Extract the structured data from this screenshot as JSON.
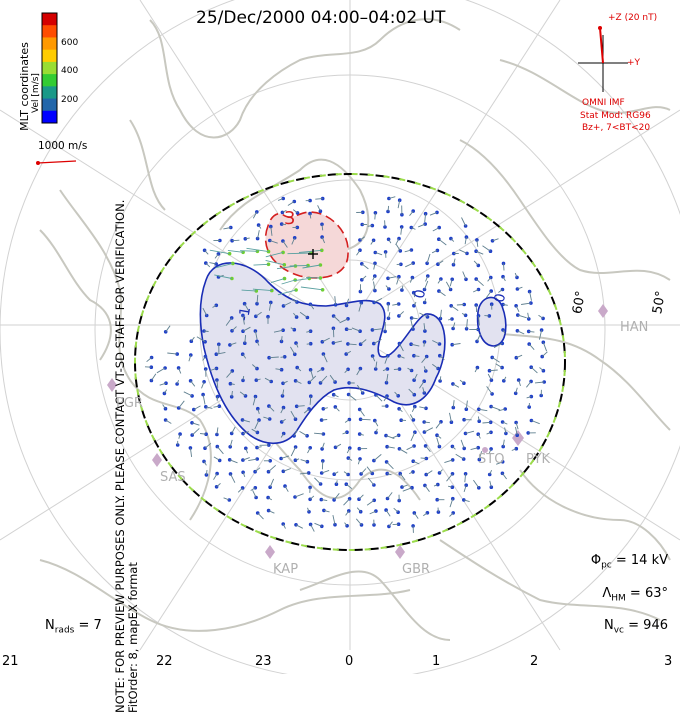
{
  "title": "25/Dec/2000 04:00–04:02 UT",
  "side_note": "NOTE: FOR PREVIEW PURPOSES ONLY. PLEASE CONTACT VT-SD STAFF FOR VERIFICATION.",
  "side_note2": "FitOrder: 8, mapEX format",
  "coords_label": "MLT coordinates",
  "colorbar": {
    "axis_label": "Vel [m/s]",
    "ticks": [
      "600",
      "400",
      "200"
    ],
    "colors": [
      "#d40000",
      "#ff4d00",
      "#ff9900",
      "#ffcc00",
      "#99dd33",
      "#33cc33",
      "#1a9988",
      "#2266aa",
      "#0000ff"
    ]
  },
  "vector_scale": {
    "label": "1000 m/s",
    "color": "#dd0000"
  },
  "imf": {
    "bz_label": "+Z (20 nT)",
    "by_label": "+Y",
    "source": "OMNI IMF",
    "stat_mod": "Stat Mod: RG96",
    "bin": "Bz+, 7<BT<20"
  },
  "stats": {
    "phi_pc": "= 14 kV",
    "lambda_hm": "= 63°",
    "n_vc": "= 946",
    "n_rads": "= 7"
  },
  "mlt_ticks": [
    "21",
    "22",
    "23",
    "0",
    "1",
    "2",
    "3"
  ],
  "lat_labels": [
    "60°",
    "50°"
  ],
  "sites": [
    "HAN",
    "PGR",
    "SAS",
    "KAP",
    "GBR",
    "STO",
    "PYK"
  ],
  "contours": [
    "3",
    "-1",
    "0",
    "0"
  ],
  "colors": {
    "vector_blue": "#1e3fc9",
    "vector_green": "#6fd12c",
    "contour_pos": "#1a2db5",
    "contour_neg": "#d42020",
    "fill_pos": "#e2e2f0",
    "fill_neg": "#f5d8d8",
    "boundary_green": "#9bdc4a",
    "coast": "#c8c8c0",
    "grid": "#cccccc"
  }
}
